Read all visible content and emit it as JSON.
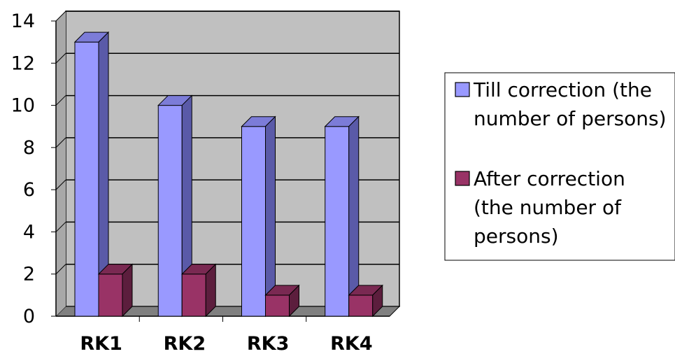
{
  "chart_data": {
    "type": "bar",
    "style": "3d-clustered-column",
    "categories": [
      "RK1",
      "RK2",
      "RK3",
      "RK4"
    ],
    "series": [
      {
        "name": "Till correction (the number of persons)",
        "values": [
          13,
          10,
          9,
          9
        ],
        "color": "#9999FF",
        "side_color": "#5A5AA8",
        "top_color": "#7C7CD8"
      },
      {
        "name": "After correction (the number of persons)",
        "values": [
          2,
          2,
          1,
          1
        ],
        "color": "#993366",
        "side_color": "#5C1E3D",
        "top_color": "#7A2952"
      }
    ],
    "y_ticks": [
      "0",
      "2",
      "4",
      "6",
      "8",
      "10",
      "12",
      "14"
    ],
    "ylim": [
      0,
      14
    ],
    "grid": true,
    "legend_position": "right",
    "legend_lines": [
      [
        "Till correction (the",
        "number of persons)"
      ],
      [
        "After correction",
        "(the number of",
        "persons)"
      ]
    ],
    "wall_color": "#C0C0C0",
    "floor_color": "#808080"
  }
}
